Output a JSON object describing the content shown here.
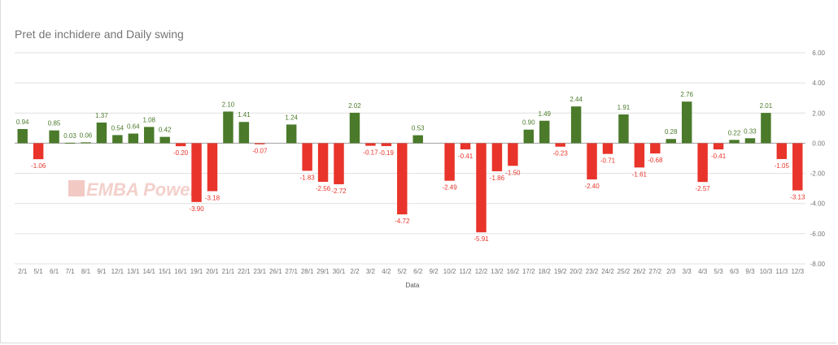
{
  "chart_data": {
    "type": "bar",
    "title": "Pret de inchidere and Daily swing",
    "xlabel": "Data",
    "ylabel": "",
    "ylim": [
      -8,
      6
    ],
    "yticks": [
      "6.00",
      "4.00",
      "2.00",
      "0.00",
      "-2.00",
      "-4.00",
      "-6.00",
      "-8.00"
    ],
    "ytick_values": [
      6,
      4,
      2,
      0,
      -2,
      -4,
      -6,
      -8
    ],
    "grid": true,
    "positive_color": "#4a7a2a",
    "negative_color": "#e8342a",
    "watermark": "EMBA Power",
    "categories": [
      "2/1",
      "5/1",
      "6/1",
      "7/1",
      "8/1",
      "9/1",
      "12/1",
      "13/1",
      "14/1",
      "15/1",
      "16/1",
      "19/1",
      "20/1",
      "21/1",
      "22/1",
      "23/1",
      "26/1",
      "27/1",
      "28/1",
      "29/1",
      "30/1",
      "2/2",
      "3/2",
      "4/2",
      "5/2",
      "6/2",
      "9/2",
      "10/2",
      "11/2",
      "12/2",
      "13/2",
      "16/2",
      "17/2",
      "18/2",
      "19/2",
      "20/2",
      "23/2",
      "24/2",
      "25/2",
      "26/2",
      "27/2",
      "2/3",
      "3/3",
      "4/3",
      "5/3",
      "6/3",
      "9/3",
      "10/3",
      "11/3",
      "12/3"
    ],
    "values": [
      0.94,
      -1.06,
      0.85,
      0.03,
      0.06,
      1.37,
      0.54,
      0.64,
      1.08,
      0.42,
      -0.2,
      -3.9,
      -3.18,
      2.1,
      1.41,
      -0.07,
      null,
      1.24,
      -1.83,
      -2.56,
      -2.72,
      2.02,
      -0.17,
      -0.19,
      -4.72,
      0.53,
      null,
      -2.49,
      -0.41,
      -5.91,
      -1.86,
      -1.5,
      0.9,
      1.49,
      -0.23,
      2.44,
      -2.4,
      -0.71,
      1.91,
      -1.61,
      -0.68,
      0.28,
      2.76,
      -2.57,
      -0.41,
      0.22,
      0.33,
      2.01,
      -1.05,
      -3.13
    ],
    "labels": [
      "0.94",
      "-1.06",
      "0.85",
      "0.03",
      "0.06",
      "1.37",
      "0.54",
      "0.64",
      "1.08",
      "0.42",
      "-0.20",
      "-3.90",
      "-3.18",
      "2.10",
      "1.41",
      "-0.07",
      "",
      "1.24",
      "-1.83",
      "-2.56",
      "-2.72",
      "2.02",
      "-0.17",
      "-0.19",
      "-4.72",
      "0.53",
      "",
      "-2.49",
      "-0.41",
      "-5.91",
      "-1.86",
      "-1.50",
      "0.90",
      "1.49",
      "-0.23",
      "2.44",
      "-2.40",
      "-0.71",
      "1.91",
      "-1.61",
      "-0.68",
      "0.28",
      "2.76",
      "-2.57",
      "-0.41",
      "0.22",
      "0.33",
      "2.01",
      "-1.05",
      "-3.13"
    ]
  }
}
